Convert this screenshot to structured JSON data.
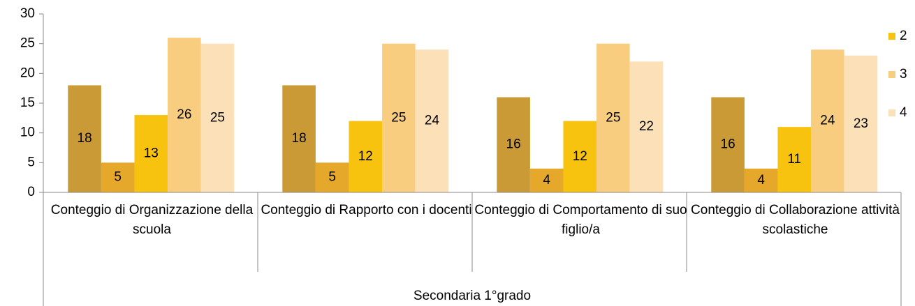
{
  "chart_data": {
    "type": "bar",
    "categories": [
      "Conteggio di Organizzazione della scuola",
      "Conteggio di Rapporto con i docenti",
      "Conteggio di Comportamento di suo figlio/a",
      "Conteggio di Collaborazione attività scolastiche"
    ],
    "group_label": "Secondaria 1°grado",
    "series": [
      {
        "color": "#c99a35",
        "values": [
          18,
          18,
          16,
          16
        ]
      },
      {
        "color": "#e6a82a",
        "values": [
          5,
          5,
          4,
          4
        ]
      },
      {
        "name": "2",
        "color": "#f7c30f",
        "values": [
          13,
          12,
          12,
          11
        ]
      },
      {
        "name": "3",
        "color": "#f9cd80",
        "values": [
          26,
          25,
          25,
          24
        ]
      },
      {
        "name": "4",
        "color": "#fce0b8",
        "values": [
          25,
          24,
          22,
          23
        ]
      }
    ],
    "ylim": [
      0,
      30
    ],
    "yticks": [
      0,
      5,
      10,
      15,
      20,
      25,
      30
    ],
    "grid": false,
    "legend": "right"
  }
}
